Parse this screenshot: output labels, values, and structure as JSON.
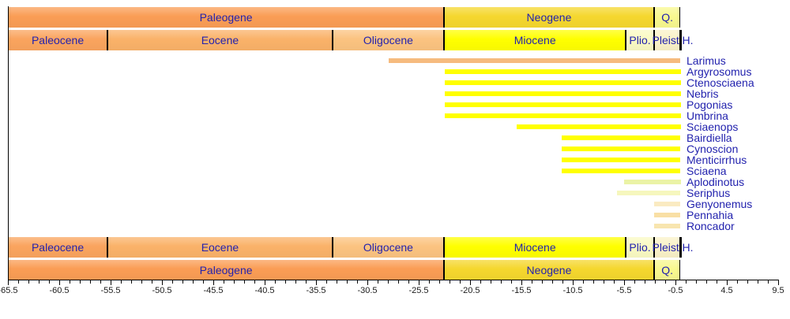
{
  "colors": {
    "label_text": "#2222AE",
    "tick_text": "#1A1A1A",
    "axis_line": "#000000",
    "background": "#FFFFFF"
  },
  "chart_data": {
    "type": "bar",
    "subtype": "stratigraphic-range-chart",
    "title": "",
    "xlabel": "",
    "ylabel": "",
    "legend": "none",
    "grid": false,
    "x_axis": {
      "min": -65.5,
      "max": 9.5,
      "minor_step": 1,
      "major_step": 5,
      "major_tick_labels": [
        -65.5,
        -60.5,
        -55.5,
        -50.5,
        -45.5,
        -40.5,
        -35.5,
        -30.5,
        -25.5,
        -20.5,
        -15.5,
        -10.5,
        -5.5,
        -0.5,
        4.5,
        9.5
      ]
    },
    "periods": [
      {
        "name": "Paleogene",
        "label": "Paleogene",
        "from": -65.5,
        "to": -23.03,
        "color": "#FA9D55"
      },
      {
        "name": "Neogene",
        "label": "Neogene",
        "from": -23.03,
        "to": -2.59,
        "color": "#F5D72E"
      },
      {
        "name": "Quaternary",
        "label": "Q.",
        "from": -2.59,
        "to": 0,
        "color": "#F8F88F"
      }
    ],
    "epochs": [
      {
        "name": "Paleocene",
        "label": "Paleocene",
        "from": -65.5,
        "to": -55.8,
        "color": "#FAA45E"
      },
      {
        "name": "Eocene",
        "label": "Eocene",
        "from": -55.8,
        "to": -33.9,
        "color": "#FAB269"
      },
      {
        "name": "Oligocene",
        "label": "Oligocene",
        "from": -33.9,
        "to": -23.03,
        "color": "#FBC380"
      },
      {
        "name": "Miocene",
        "label": "Miocene",
        "from": -23.03,
        "to": -5.33,
        "color": "#FFFF00"
      },
      {
        "name": "Pliocene",
        "label": "Plio.",
        "from": -5.33,
        "to": -2.59,
        "color": "#FAFAC3"
      },
      {
        "name": "Pleistocene",
        "label": "Pleist.",
        "from": -2.59,
        "to": -0.01,
        "color": "#FAF2C8"
      },
      {
        "name": "Holocene",
        "label": "H.",
        "from": -0.01,
        "to": 0,
        "color": "#FCF5DE",
        "label_outside": true
      }
    ],
    "taxa": [
      {
        "name": "Larimus",
        "from": -28.4,
        "to": 0,
        "color": "#F6BB7E"
      },
      {
        "name": "Argyrosomus",
        "from": -23.0,
        "to": 0,
        "color": "#FFFF00"
      },
      {
        "name": "Ctenosciaena",
        "from": -23.0,
        "to": 0,
        "color": "#FFFF00"
      },
      {
        "name": "Nebris",
        "from": -23.0,
        "to": 0,
        "color": "#FFFF00"
      },
      {
        "name": "Pogonias",
        "from": -23.0,
        "to": 0,
        "color": "#FFFF00"
      },
      {
        "name": "Umbrina",
        "from": -23.0,
        "to": 0,
        "color": "#FFFF00"
      },
      {
        "name": "Sciaenops",
        "from": -16.0,
        "to": 0,
        "color": "#FFFF00"
      },
      {
        "name": "Bairdiella",
        "from": -11.6,
        "to": 0,
        "color": "#FFFF00"
      },
      {
        "name": "Cynoscion",
        "from": -11.6,
        "to": 0,
        "color": "#FFFF00"
      },
      {
        "name": "Menticirrhus",
        "from": -11.6,
        "to": 0,
        "color": "#FFFF00"
      },
      {
        "name": "Sciaena",
        "from": -11.6,
        "to": 0,
        "color": "#FFFF00"
      },
      {
        "name": "Aplodinotus",
        "from": -5.5,
        "to": 0,
        "color": "#EBF3A6"
      },
      {
        "name": "Seriphus",
        "from": -6.2,
        "to": 0,
        "color": "#F6F7BD"
      },
      {
        "name": "Genyonemus",
        "from": -2.6,
        "to": 0,
        "color": "#FAEBC2"
      },
      {
        "name": "Pennahia",
        "from": -2.6,
        "to": 0,
        "color": "#F9DFA5"
      },
      {
        "name": "Roncador",
        "from": -2.6,
        "to": 0,
        "color": "#F8E5AF"
      }
    ]
  }
}
